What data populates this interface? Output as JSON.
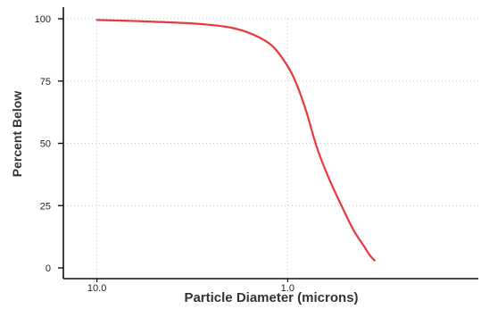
{
  "chart_data": {
    "type": "line",
    "title": "",
    "xlabel": "Particle Diameter (microns)",
    "ylabel": "Percent Below",
    "x_scale": "log",
    "x_direction": "descending",
    "xlim": [
      15.0,
      0.1
    ],
    "ylim": [
      0,
      100
    ],
    "xticks": [
      10.0,
      1.0
    ],
    "xtick_labels": [
      "10.0",
      "1.0"
    ],
    "yticks": [
      0,
      25,
      50,
      75,
      100
    ],
    "ytick_labels": [
      "0",
      "25",
      "50",
      "75",
      "100"
    ],
    "grid": true,
    "line_color": "#e8383d",
    "series": [
      {
        "x": [
          10.0,
          7.0,
          5.0,
          3.0,
          2.0,
          1.5,
          1.2,
          1.0,
          0.9,
          0.8,
          0.7,
          0.6,
          0.5,
          0.45,
          0.4,
          0.37,
          0.35
        ],
        "y": [
          99.5,
          99.2,
          98.8,
          98.0,
          96.5,
          93.5,
          89.0,
          81.0,
          74.0,
          63.0,
          48.0,
          35.0,
          22.0,
          15.0,
          9.0,
          5.0,
          3.0
        ]
      }
    ]
  }
}
